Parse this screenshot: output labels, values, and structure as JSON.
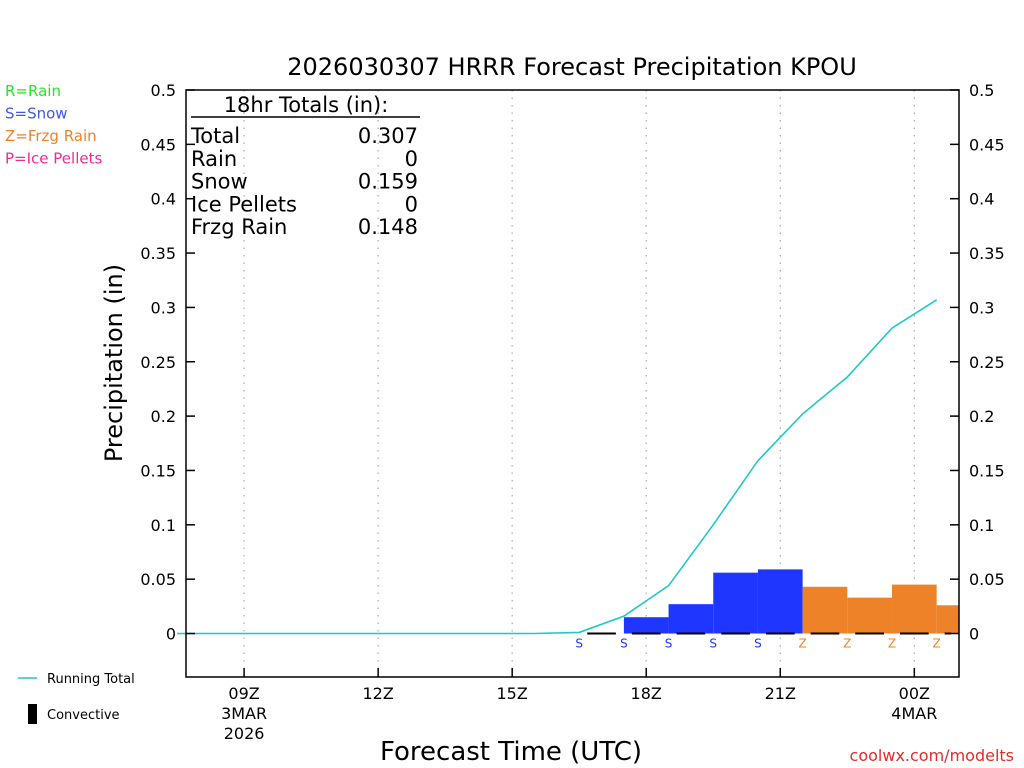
{
  "chart_data": {
    "type": "bar",
    "title": "2026030307 HRRR Forecast Precipitation KPOU",
    "xlabel": "Forecast Time (UTC)",
    "ylabel": "Precipitation (in)",
    "ylim": [
      -0.04,
      0.5
    ],
    "y_ticks": [
      "0",
      "0.05",
      "0.1",
      "0.15",
      "0.2",
      "0.25",
      "0.3",
      "0.35",
      "0.4",
      "0.45",
      "0.5"
    ],
    "x_ticks": [
      {
        "hour": 9,
        "label": "09Z",
        "sub1": "3MAR",
        "sub2": "2026"
      },
      {
        "hour": 12,
        "label": "12Z",
        "sub1": "",
        "sub2": ""
      },
      {
        "hour": 15,
        "label": "15Z",
        "sub1": "",
        "sub2": ""
      },
      {
        "hour": 18,
        "label": "18Z",
        "sub1": "",
        "sub2": ""
      },
      {
        "hour": 21,
        "label": "21Z",
        "sub1": "",
        "sub2": ""
      },
      {
        "hour": 24,
        "label": "00Z",
        "sub1": "4MAR",
        "sub2": ""
      }
    ],
    "xlim_hours": [
      7.7,
      25.0
    ],
    "hours": [
      8,
      9,
      10,
      11,
      12,
      13,
      14,
      15,
      16,
      17,
      18,
      19,
      20,
      21,
      22,
      23,
      24,
      25
    ],
    "hourly_precip": [
      0,
      0,
      0,
      0,
      0,
      0,
      0,
      0,
      0,
      0.001,
      0.015,
      0.027,
      0.056,
      0.059,
      0.043,
      0.033,
      0.045,
      0.026
    ],
    "precip_type": [
      "",
      "",
      "",
      "",
      "",
      "",
      "",
      "",
      "",
      "S",
      "S",
      "S",
      "S",
      "S",
      "Z",
      "Z",
      "Z",
      "Z"
    ],
    "convective": [
      0,
      0,
      0,
      0,
      0,
      0,
      0,
      0,
      0,
      0,
      0,
      0,
      0,
      0,
      0,
      0,
      0,
      0
    ],
    "running_total_hours": [
      8,
      9,
      10,
      11,
      12,
      13,
      14,
      15,
      16,
      17,
      18,
      19,
      20,
      21,
      22,
      23,
      24,
      25
    ],
    "running_total": [
      0,
      0,
      0,
      0,
      0,
      0,
      0,
      0,
      0,
      0.001,
      0.016,
      0.044,
      0.1,
      0.159,
      0.202,
      0.236,
      0.281,
      0.307
    ],
    "colors": {
      "S": "#1e36ff",
      "Z": "#ee8229",
      "R": "#23e623",
      "P": "#ee2b95",
      "running_total": "#1fc8c8",
      "convective": "#000000"
    },
    "totals_box": {
      "heading": "18hr Totals (in):",
      "rows": [
        {
          "label": "Total",
          "value": "0.307"
        },
        {
          "label": "Rain",
          "value": "0"
        },
        {
          "label": "Snow",
          "value": "0.159"
        },
        {
          "label": "Ice Pellets",
          "value": "0"
        },
        {
          "label": "Frzg Rain",
          "value": "0.148"
        }
      ]
    },
    "type_legend": [
      {
        "label": "R=Rain",
        "color": "#23e623"
      },
      {
        "label": "S=Snow",
        "color": "#3f57e8"
      },
      {
        "label": "Z=Frzg Rain",
        "color": "#ee8229"
      },
      {
        "label": "P=Ice Pellets",
        "color": "#ee2b95"
      }
    ],
    "line_legend": [
      {
        "label": "Running Total",
        "kind": "line"
      },
      {
        "label": "Convective",
        "kind": "bar"
      }
    ],
    "credit": {
      "text": "coolwx.com/modelts",
      "color": "#e32b2b"
    }
  }
}
